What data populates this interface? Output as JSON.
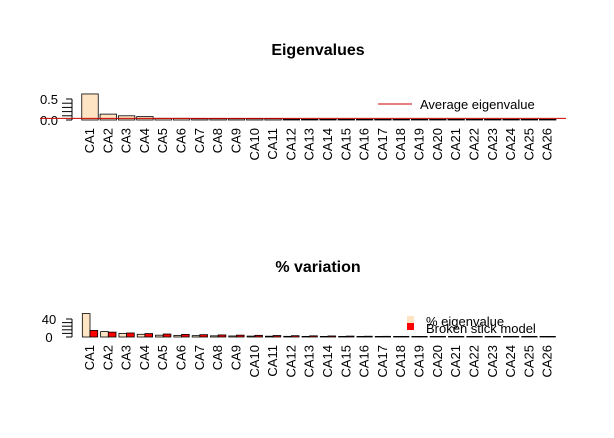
{
  "chart_data": [
    {
      "type": "bar",
      "title": "Eigenvalues",
      "categories": [
        "CA1",
        "CA2",
        "CA3",
        "CA4",
        "CA5",
        "CA6",
        "CA7",
        "CA8",
        "CA9",
        "CA10",
        "CA11",
        "CA12",
        "CA13",
        "CA14",
        "CA15",
        "CA16",
        "CA17",
        "CA18",
        "CA19",
        "CA20",
        "CA21",
        "CA22",
        "CA23",
        "CA24",
        "CA25",
        "CA26"
      ],
      "series": [
        {
          "values": [
            0.62,
            0.14,
            0.1,
            0.08,
            0.04,
            0.04,
            0.03,
            0.03,
            0.03,
            0.03,
            0.03,
            0.02,
            0.015,
            0.012,
            0.01,
            0.01,
            0.008,
            0.007,
            0.006,
            0.005,
            0.004,
            0.003,
            0.003,
            0.002,
            0.002,
            0.001
          ],
          "color": "#ffe4c4"
        }
      ],
      "reference_line": {
        "label": "Average eigenvalue",
        "value": 0.038,
        "color": "#cc0000"
      },
      "yticks": [
        "0.0",
        "0.5"
      ],
      "ylim": [
        0,
        0.65
      ],
      "legend_position": "right"
    },
    {
      "type": "bar",
      "title": "% variation",
      "categories": [
        "CA1",
        "CA2",
        "CA3",
        "CA4",
        "CA5",
        "CA6",
        "CA7",
        "CA8",
        "CA9",
        "CA10",
        "CA11",
        "CA12",
        "CA13",
        "CA14",
        "CA15",
        "CA16",
        "CA17",
        "CA18",
        "CA19",
        "CA20",
        "CA21",
        "CA22",
        "CA23",
        "CA24",
        "CA25",
        "CA26"
      ],
      "series": [
        {
          "name": "% eigenvalue",
          "values": [
            52,
            12,
            8,
            6,
            4,
            3.5,
            3,
            2.6,
            2.3,
            2,
            1.8,
            1.5,
            1.3,
            1.1,
            1,
            0.9,
            0.7,
            0.6,
            0.5,
            0.4,
            0.3,
            0.3,
            0.2,
            0.2,
            0.1,
            0.1
          ],
          "color": "#ffe4c4"
        },
        {
          "name": "Broken stick model",
          "values": [
            14.6,
            10.8,
            8.9,
            7.6,
            6.6,
            5.8,
            5.2,
            4.6,
            4.1,
            3.7,
            3.3,
            2.9,
            2.6,
            2.3,
            2,
            1.7,
            1.5,
            1.3,
            1.1,
            0.9,
            0.7,
            0.55,
            0.4,
            0.28,
            0.16,
            0.06
          ],
          "color": "#ff0000"
        }
      ],
      "yticks": [
        "0",
        "40"
      ],
      "ylim": [
        0,
        52
      ],
      "legend_position": "right"
    }
  ]
}
